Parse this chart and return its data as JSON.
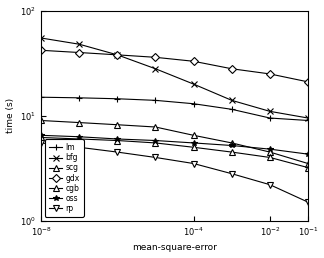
{
  "title": "",
  "xlabel": "mean-square-error",
  "ylabel": "time (s)",
  "algorithms": [
    "lm",
    "bfg",
    "scg",
    "gdx",
    "cgb",
    "oss",
    "rp"
  ],
  "x_vals": [
    1e-08,
    1e-07,
    1e-06,
    1e-05,
    0.0001,
    0.001,
    0.01,
    0.1
  ],
  "series": {
    "lm": [
      15.0,
      14.8,
      14.5,
      14.0,
      13.0,
      11.5,
      9.5,
      9.0
    ],
    "bfg": [
      55.0,
      48.0,
      38.0,
      28.0,
      20.0,
      14.0,
      11.0,
      9.5
    ],
    "scg": [
      9.0,
      8.6,
      8.2,
      7.8,
      6.5,
      5.5,
      4.5,
      3.5
    ],
    "gdx": [
      42.0,
      40.0,
      38.0,
      36.0,
      33.0,
      28.0,
      25.0,
      21.0
    ],
    "cgb": [
      6.2,
      6.0,
      5.8,
      5.5,
      5.0,
      4.5,
      4.0,
      3.2
    ],
    "oss": [
      6.5,
      6.3,
      6.0,
      5.8,
      5.5,
      5.2,
      4.8,
      4.3
    ],
    "rp": [
      5.5,
      5.0,
      4.5,
      4.0,
      3.5,
      2.8,
      2.2,
      1.5
    ]
  },
  "markers": {
    "lm": "+",
    "bfg": "x",
    "scg": "^",
    "gdx": "D",
    "cgb": "^",
    "oss": "*",
    "rp": "v"
  },
  "marker_faces": {
    "lm": "black",
    "bfg": "black",
    "scg": "white",
    "gdx": "white",
    "cgb": "white",
    "oss": "black",
    "rp": "white"
  },
  "line_color": "#000000",
  "background_color": "#ffffff",
  "xlim": [
    1e-08,
    0.1
  ],
  "ylim": [
    1.0,
    100.0
  ]
}
